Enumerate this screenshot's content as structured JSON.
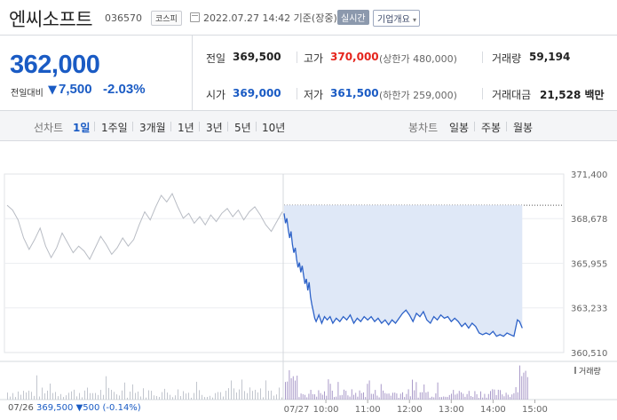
{
  "header": {
    "name": "엔씨소프트",
    "code": "036570",
    "market": "코스피",
    "datetime": "2022.07.27 14:42 기준(장중)",
    "live_badge": "실시간",
    "info_button": "기업개요",
    "info_caret": "▾"
  },
  "quote": {
    "price": "362,000",
    "change_label": "전일대비",
    "change_arrow": "▼",
    "change_value": "7,500",
    "change_percent": "-2.03%",
    "prev_close_label": "전일",
    "prev_close": "369,500",
    "high_label": "고가",
    "high": "370,000",
    "upper_limit": "(상한가 480,000)",
    "volume_label": "거래량",
    "volume": "59,194",
    "open_label": "시가",
    "open": "369,000",
    "low_label": "저가",
    "low": "361,500",
    "lower_limit": "(하한가 259,000)",
    "amount_label": "거래대금",
    "amount": "21,528 백만"
  },
  "toolbar": {
    "line_chart_label": "선차트",
    "periods": [
      "1일",
      "1주일",
      "3개월",
      "1년",
      "3년",
      "5년",
      "10년"
    ],
    "active_period": "1일",
    "candle_label": "봉차트",
    "candles": [
      "일봉",
      "주봉",
      "월봉"
    ]
  },
  "chart_data": {
    "type": "line",
    "title": "",
    "xlabel": "",
    "ylabel": "",
    "y_ticks": [
      "371,400",
      "368,678",
      "365,955",
      "363,233",
      "360,510"
    ],
    "y_tick_values": [
      371400,
      368678,
      365955,
      363233,
      360510
    ],
    "ylim": [
      360510,
      371400
    ],
    "x_ticks": [
      "07/26",
      "07/27",
      "10:00",
      "11:00",
      "12:00",
      "13:00",
      "14:00",
      "15:00"
    ],
    "reference_line": 369500,
    "previous_day": [
      [
        0,
        369500
      ],
      [
        0.02,
        369200
      ],
      [
        0.04,
        368600
      ],
      [
        0.06,
        367500
      ],
      [
        0.08,
        366800
      ],
      [
        0.1,
        367400
      ],
      [
        0.12,
        368100
      ],
      [
        0.14,
        367000
      ],
      [
        0.16,
        366300
      ],
      [
        0.18,
        366900
      ],
      [
        0.2,
        367800
      ],
      [
        0.22,
        367200
      ],
      [
        0.24,
        366600
      ],
      [
        0.26,
        367000
      ],
      [
        0.28,
        366700
      ],
      [
        0.3,
        366200
      ],
      [
        0.32,
        366900
      ],
      [
        0.34,
        367600
      ],
      [
        0.36,
        367100
      ],
      [
        0.38,
        366500
      ],
      [
        0.4,
        366900
      ],
      [
        0.42,
        367500
      ],
      [
        0.44,
        367000
      ],
      [
        0.46,
        367400
      ],
      [
        0.48,
        368300
      ],
      [
        0.5,
        369100
      ],
      [
        0.52,
        368600
      ],
      [
        0.54,
        369400
      ],
      [
        0.56,
        370100
      ],
      [
        0.58,
        369700
      ],
      [
        0.6,
        370200
      ],
      [
        0.62,
        369400
      ],
      [
        0.64,
        368700
      ],
      [
        0.66,
        369000
      ],
      [
        0.68,
        368400
      ],
      [
        0.7,
        368800
      ],
      [
        0.72,
        368300
      ],
      [
        0.74,
        368900
      ],
      [
        0.76,
        368500
      ],
      [
        0.78,
        369000
      ],
      [
        0.8,
        369300
      ],
      [
        0.82,
        368800
      ],
      [
        0.84,
        369200
      ],
      [
        0.86,
        368600
      ],
      [
        0.88,
        369100
      ],
      [
        0.9,
        369400
      ],
      [
        0.92,
        368900
      ],
      [
        0.94,
        368300
      ],
      [
        0.96,
        367900
      ],
      [
        0.98,
        368500
      ],
      [
        1.0,
        369100
      ]
    ],
    "today": [
      [
        "09:00",
        369000
      ],
      [
        "09:02",
        368400
      ],
      [
        "09:04",
        368700
      ],
      [
        "09:06",
        368000
      ],
      [
        "09:08",
        367500
      ],
      [
        "09:10",
        367900
      ],
      [
        "09:12",
        367100
      ],
      [
        "09:14",
        366600
      ],
      [
        "09:16",
        366900
      ],
      [
        "09:18",
        366200
      ],
      [
        "09:20",
        365700
      ],
      [
        "09:22",
        366000
      ],
      [
        "09:24",
        365400
      ],
      [
        "09:26",
        365800
      ],
      [
        "09:28",
        365200
      ],
      [
        "09:30",
        364700
      ],
      [
        "09:32",
        365000
      ],
      [
        "09:34",
        364300
      ],
      [
        "09:36",
        364800
      ],
      [
        "09:38",
        363900
      ],
      [
        "09:40",
        363400
      ],
      [
        "09:42",
        363000
      ],
      [
        "09:44",
        362600
      ],
      [
        "09:46",
        362400
      ],
      [
        "09:50",
        362800
      ],
      [
        "09:54",
        362300
      ],
      [
        "09:58",
        362700
      ],
      [
        "10:02",
        362500
      ],
      [
        "10:06",
        362700
      ],
      [
        "10:10",
        362300
      ],
      [
        "10:15",
        362600
      ],
      [
        "10:20",
        362400
      ],
      [
        "10:25",
        362700
      ],
      [
        "10:30",
        362500
      ],
      [
        "10:35",
        362800
      ],
      [
        "10:40",
        362300
      ],
      [
        "10:45",
        362600
      ],
      [
        "10:50",
        362400
      ],
      [
        "10:55",
        362700
      ],
      [
        "11:00",
        362500
      ],
      [
        "11:05",
        362700
      ],
      [
        "11:10",
        362400
      ],
      [
        "11:15",
        362600
      ],
      [
        "11:20",
        362300
      ],
      [
        "11:25",
        362500
      ],
      [
        "11:30",
        362200
      ],
      [
        "11:35",
        362500
      ],
      [
        "11:40",
        362300
      ],
      [
        "11:45",
        362600
      ],
      [
        "11:50",
        362900
      ],
      [
        "11:55",
        363100
      ],
      [
        "12:00",
        362800
      ],
      [
        "12:05",
        362400
      ],
      [
        "12:10",
        362900
      ],
      [
        "12:15",
        362700
      ],
      [
        "12:20",
        363000
      ],
      [
        "12:25",
        362500
      ],
      [
        "12:30",
        362300
      ],
      [
        "12:35",
        362700
      ],
      [
        "12:40",
        362500
      ],
      [
        "12:45",
        362800
      ],
      [
        "12:50",
        362600
      ],
      [
        "12:55",
        362700
      ],
      [
        "13:00",
        362400
      ],
      [
        "13:05",
        362600
      ],
      [
        "13:10",
        362400
      ],
      [
        "13:15",
        362100
      ],
      [
        "13:20",
        362300
      ],
      [
        "13:25",
        362000
      ],
      [
        "13:30",
        362300
      ],
      [
        "13:35",
        362100
      ],
      [
        "13:40",
        361700
      ],
      [
        "13:45",
        361600
      ],
      [
        "13:50",
        361700
      ],
      [
        "13:55",
        361600
      ],
      [
        "14:00",
        361800
      ],
      [
        "14:05",
        361500
      ],
      [
        "14:10",
        361600
      ],
      [
        "14:15",
        361500
      ],
      [
        "14:20",
        361700
      ],
      [
        "14:25",
        361600
      ],
      [
        "14:30",
        361500
      ],
      [
        "14:35",
        362500
      ],
      [
        "14:38",
        362400
      ],
      [
        "14:42",
        362000
      ]
    ],
    "volume_label": "거래량"
  },
  "footer": {
    "prev_date": "07/26",
    "prev_close": "369,500",
    "prev_change": "▼500",
    "prev_pct": "(-0.14%)"
  }
}
